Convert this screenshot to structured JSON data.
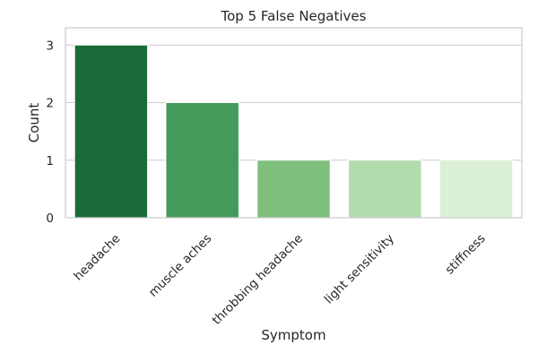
{
  "chart_data": {
    "type": "bar",
    "title": "Top 5 False Negatives",
    "xlabel": "Symptom",
    "ylabel": "Count",
    "categories": [
      "headache",
      "muscle aches",
      "throbbing headache",
      "light sensitivity",
      "stiffness"
    ],
    "values": [
      3,
      2,
      1,
      1,
      1
    ],
    "ylim": [
      0,
      3.3
    ],
    "yticks": [
      0,
      1,
      2,
      3
    ],
    "bar_colors": [
      "#1a6b37",
      "#449a5a",
      "#7fbf7e",
      "#b2dbae",
      "#dbf0d7"
    ],
    "grid": true,
    "grid_axis": "y",
    "legend": false
  }
}
